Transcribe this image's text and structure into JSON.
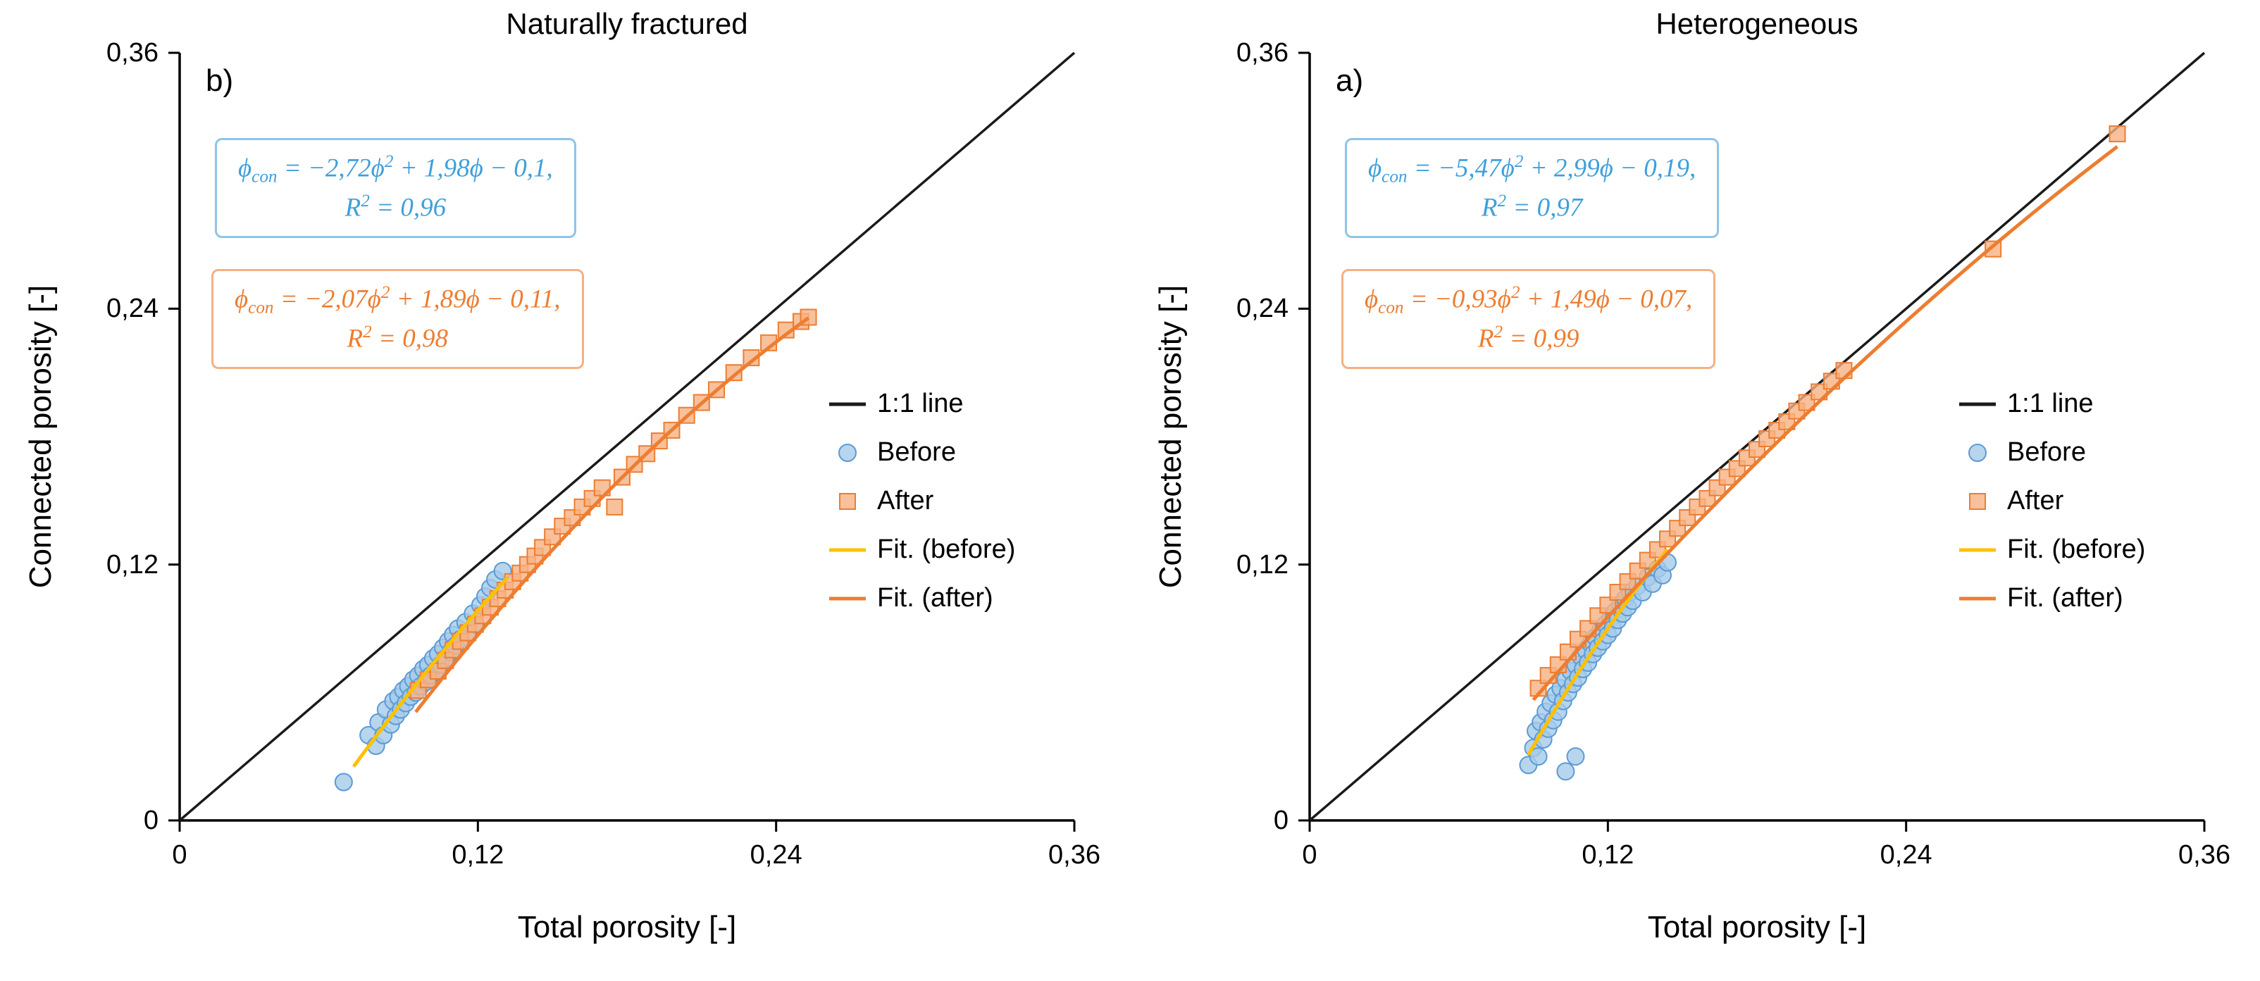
{
  "page": {
    "background": "#ffffff"
  },
  "colors": {
    "axis": "#000000",
    "one_to_one": "#1a1a1a",
    "before_fill": "#a5cbe9",
    "before_stroke": "#5b9bd5",
    "after_fill": "#f6b183",
    "after_stroke": "#ed7d31",
    "fit_before": "#ffc000",
    "fit_after": "#ed7d31",
    "equation_blue_text": "#3fa0db",
    "equation_blue_border": "#8fc4e8",
    "equation_orange_text": "#ed7d31",
    "equation_orange_border": "#f4b183"
  },
  "legend": {
    "items": [
      {
        "key": "one-to-one",
        "label": "1:1 line",
        "swatch": "line",
        "color": "#1a1a1a"
      },
      {
        "key": "before",
        "label": "Before",
        "swatch": "circle",
        "fill": "#a5cbe9",
        "stroke": "#5b9bd5"
      },
      {
        "key": "after",
        "label": "After",
        "swatch": "square",
        "fill": "#f6b183",
        "stroke": "#ed7d31"
      },
      {
        "key": "fit-before",
        "label": "Fit. (before)",
        "swatch": "line",
        "color": "#ffc000"
      },
      {
        "key": "fit-after",
        "label": "Fit. (after)",
        "swatch": "line",
        "color": "#ed7d31"
      }
    ]
  },
  "chart_data": [
    {
      "type": "scatter",
      "panel_label": "b)",
      "title": "Naturally fractured",
      "xlabel": "Total porosity [-]",
      "ylabel": "Connected porosity [-]",
      "xlim": [
        0,
        0.36
      ],
      "ylim": [
        0,
        0.36
      ],
      "grid": false,
      "xticks": {
        "values": [
          0,
          0.12,
          0.24,
          0.36
        ],
        "labels": [
          "0",
          "0,12",
          "0,24",
          "0,36"
        ]
      },
      "yticks": {
        "values": [
          0,
          0.12,
          0.24,
          0.36
        ],
        "labels": [
          "0",
          "0,12",
          "0,24",
          "0,36"
        ]
      },
      "one_to_one_line": {
        "label": "1:1 line",
        "from": [
          0,
          0
        ],
        "to": [
          0.36,
          0.36
        ],
        "color": "#1a1a1a"
      },
      "series": [
        {
          "key": "before",
          "name": "Before",
          "marker": "circle",
          "fill": "#a5cbe9",
          "stroke": "#5b9bd5",
          "points": [
            [
              0.066,
              0.018
            ],
            [
              0.076,
              0.04
            ],
            [
              0.079,
              0.035
            ],
            [
              0.08,
              0.046
            ],
            [
              0.082,
              0.04
            ],
            [
              0.083,
              0.052
            ],
            [
              0.085,
              0.045
            ],
            [
              0.086,
              0.056
            ],
            [
              0.087,
              0.049
            ],
            [
              0.088,
              0.058
            ],
            [
              0.089,
              0.052
            ],
            [
              0.09,
              0.061
            ],
            [
              0.091,
              0.055
            ],
            [
              0.092,
              0.063
            ],
            [
              0.093,
              0.058
            ],
            [
              0.094,
              0.066
            ],
            [
              0.095,
              0.06
            ],
            [
              0.096,
              0.068
            ],
            [
              0.097,
              0.063
            ],
            [
              0.098,
              0.071
            ],
            [
              0.099,
              0.065
            ],
            [
              0.1,
              0.073
            ],
            [
              0.101,
              0.068
            ],
            [
              0.102,
              0.076
            ],
            [
              0.103,
              0.07
            ],
            [
              0.104,
              0.078
            ],
            [
              0.105,
              0.073
            ],
            [
              0.106,
              0.081
            ],
            [
              0.107,
              0.076
            ],
            [
              0.108,
              0.084
            ],
            [
              0.109,
              0.079
            ],
            [
              0.11,
              0.087
            ],
            [
              0.111,
              0.082
            ],
            [
              0.112,
              0.09
            ],
            [
              0.113,
              0.085
            ],
            [
              0.115,
              0.093
            ],
            [
              0.116,
              0.088
            ],
            [
              0.118,
              0.097
            ],
            [
              0.119,
              0.092
            ],
            [
              0.121,
              0.101
            ],
            [
              0.123,
              0.105
            ],
            [
              0.125,
              0.109
            ],
            [
              0.127,
              0.113
            ],
            [
              0.13,
              0.117
            ]
          ]
        },
        {
          "key": "after",
          "name": "After",
          "marker": "square",
          "fill": "#f6b183",
          "stroke": "#ed7d31",
          "points": [
            [
              0.096,
              0.061
            ],
            [
              0.1,
              0.066
            ],
            [
              0.104,
              0.07
            ],
            [
              0.107,
              0.075
            ],
            [
              0.11,
              0.08
            ],
            [
              0.113,
              0.084
            ],
            [
              0.116,
              0.088
            ],
            [
              0.119,
              0.092
            ],
            [
              0.122,
              0.096
            ],
            [
              0.125,
              0.1
            ],
            [
              0.128,
              0.104
            ],
            [
              0.131,
              0.108
            ],
            [
              0.134,
              0.112
            ],
            [
              0.137,
              0.116
            ],
            [
              0.14,
              0.12
            ],
            [
              0.143,
              0.124
            ],
            [
              0.146,
              0.128
            ],
            [
              0.15,
              0.133
            ],
            [
              0.154,
              0.138
            ],
            [
              0.158,
              0.142
            ],
            [
              0.162,
              0.147
            ],
            [
              0.166,
              0.151
            ],
            [
              0.17,
              0.156
            ],
            [
              0.175,
              0.147
            ],
            [
              0.178,
              0.161
            ],
            [
              0.183,
              0.167
            ],
            [
              0.188,
              0.172
            ],
            [
              0.193,
              0.178
            ],
            [
              0.198,
              0.183
            ],
            [
              0.204,
              0.19
            ],
            [
              0.21,
              0.196
            ],
            [
              0.216,
              0.202
            ],
            [
              0.223,
              0.21
            ],
            [
              0.23,
              0.217
            ],
            [
              0.237,
              0.224
            ],
            [
              0.244,
              0.23
            ],
            [
              0.25,
              0.234
            ],
            [
              0.253,
              0.236
            ]
          ]
        }
      ],
      "fits": [
        {
          "key": "before",
          "name": "Fit. (before)",
          "color": "#ffc000",
          "coeffs": [
            -2.72,
            1.98,
            -0.1
          ],
          "x_range": [
            0.07,
            0.132
          ],
          "equation": {
            "line1": "ϕ_{con} = −2,72ϕ^{2} + 1,98ϕ − 0,1,",
            "line2": "R^{2} = 0,96",
            "text_color": "#3fa0db",
            "border_color": "#8fc4e8"
          }
        },
        {
          "key": "after",
          "name": "Fit. (after)",
          "color": "#ed7d31",
          "coeffs": [
            -2.07,
            1.89,
            -0.11
          ],
          "x_range": [
            0.095,
            0.253
          ],
          "equation": {
            "line1": "ϕ_{con} = −2,07ϕ^{2} + 1,89ϕ − 0,11,",
            "line2": "R^{2} = 0,98",
            "text_color": "#ed7d31",
            "border_color": "#f4b183"
          }
        }
      ]
    },
    {
      "type": "scatter",
      "panel_label": "a)",
      "title": "Heterogeneous",
      "xlabel": "Total porosity [-]",
      "ylabel": "Connected porosity [-]",
      "xlim": [
        0,
        0.36
      ],
      "ylim": [
        0,
        0.36
      ],
      "grid": false,
      "xticks": {
        "values": [
          0,
          0.12,
          0.24,
          0.36
        ],
        "labels": [
          "0",
          "0,12",
          "0,24",
          "0,36"
        ]
      },
      "yticks": {
        "values": [
          0,
          0.12,
          0.24,
          0.36
        ],
        "labels": [
          "0",
          "0,12",
          "0,24",
          "0,36"
        ]
      },
      "one_to_one_line": {
        "label": "1:1 line",
        "from": [
          0,
          0
        ],
        "to": [
          0.36,
          0.36
        ],
        "color": "#1a1a1a"
      },
      "series": [
        {
          "key": "before",
          "name": "Before",
          "marker": "circle",
          "fill": "#a5cbe9",
          "stroke": "#5b9bd5",
          "points": [
            [
              0.088,
              0.026
            ],
            [
              0.09,
              0.034
            ],
            [
              0.091,
              0.042
            ],
            [
              0.092,
              0.03
            ],
            [
              0.093,
              0.046
            ],
            [
              0.094,
              0.038
            ],
            [
              0.095,
              0.051
            ],
            [
              0.096,
              0.043
            ],
            [
              0.097,
              0.055
            ],
            [
              0.098,
              0.047
            ],
            [
              0.099,
              0.059
            ],
            [
              0.1,
              0.051
            ],
            [
              0.101,
              0.062
            ],
            [
              0.102,
              0.056
            ],
            [
              0.103,
              0.023
            ],
            [
              0.103,
              0.066
            ],
            [
              0.104,
              0.06
            ],
            [
              0.105,
              0.07
            ],
            [
              0.106,
              0.064
            ],
            [
              0.107,
              0.03
            ],
            [
              0.107,
              0.073
            ],
            [
              0.108,
              0.067
            ],
            [
              0.109,
              0.077
            ],
            [
              0.11,
              0.071
            ],
            [
              0.111,
              0.08
            ],
            [
              0.112,
              0.074
            ],
            [
              0.113,
              0.083
            ],
            [
              0.114,
              0.078
            ],
            [
              0.115,
              0.086
            ],
            [
              0.116,
              0.081
            ],
            [
              0.117,
              0.089
            ],
            [
              0.118,
              0.084
            ],
            [
              0.119,
              0.092
            ],
            [
              0.12,
              0.087
            ],
            [
              0.121,
              0.095
            ],
            [
              0.122,
              0.09
            ],
            [
              0.123,
              0.098
            ],
            [
              0.124,
              0.094
            ],
            [
              0.125,
              0.101
            ],
            [
              0.126,
              0.097
            ],
            [
              0.127,
              0.104
            ],
            [
              0.128,
              0.1
            ],
            [
              0.129,
              0.107
            ],
            [
              0.13,
              0.103
            ],
            [
              0.132,
              0.11
            ],
            [
              0.134,
              0.107
            ],
            [
              0.136,
              0.114
            ],
            [
              0.138,
              0.111
            ],
            [
              0.14,
              0.118
            ],
            [
              0.142,
              0.115
            ],
            [
              0.144,
              0.121
            ]
          ]
        },
        {
          "key": "after",
          "name": "After",
          "marker": "square",
          "fill": "#f6b183",
          "stroke": "#ed7d31",
          "points": [
            [
              0.092,
              0.062
            ],
            [
              0.096,
              0.068
            ],
            [
              0.1,
              0.073
            ],
            [
              0.104,
              0.079
            ],
            [
              0.108,
              0.085
            ],
            [
              0.112,
              0.09
            ],
            [
              0.116,
              0.096
            ],
            [
              0.12,
              0.101
            ],
            [
              0.124,
              0.107
            ],
            [
              0.128,
              0.112
            ],
            [
              0.132,
              0.117
            ],
            [
              0.136,
              0.122
            ],
            [
              0.14,
              0.127
            ],
            [
              0.144,
              0.132
            ],
            [
              0.148,
              0.137
            ],
            [
              0.152,
              0.142
            ],
            [
              0.156,
              0.147
            ],
            [
              0.16,
              0.151
            ],
            [
              0.164,
              0.156
            ],
            [
              0.168,
              0.161
            ],
            [
              0.172,
              0.165
            ],
            [
              0.176,
              0.17
            ],
            [
              0.18,
              0.174
            ],
            [
              0.184,
              0.179
            ],
            [
              0.188,
              0.183
            ],
            [
              0.192,
              0.187
            ],
            [
              0.196,
              0.192
            ],
            [
              0.2,
              0.196
            ],
            [
              0.205,
              0.201
            ],
            [
              0.21,
              0.206
            ],
            [
              0.215,
              0.211
            ],
            [
              0.275,
              0.268
            ],
            [
              0.325,
              0.322
            ]
          ]
        }
      ],
      "fits": [
        {
          "key": "before",
          "name": "Fit. (before)",
          "color": "#ffc000",
          "coeffs": [
            -5.47,
            2.99,
            -0.19
          ],
          "x_range": [
            0.088,
            0.144
          ],
          "equation": {
            "line1": "ϕ_{con} = −5,47ϕ^{2} + 2,99ϕ − 0,19,",
            "line2": "R^{2} = 0,97",
            "text_color": "#3fa0db",
            "border_color": "#8fc4e8"
          }
        },
        {
          "key": "after",
          "name": "Fit. (after)",
          "color": "#ed7d31",
          "coeffs": [
            -0.93,
            1.49,
            -0.07
          ],
          "x_range": [
            0.09,
            0.325
          ],
          "equation": {
            "line1": "ϕ_{con} = −0,93ϕ^{2} + 1,49ϕ − 0,07,",
            "line2": "R^{2} = 0,99",
            "text_color": "#ed7d31",
            "border_color": "#f4b183"
          }
        }
      ]
    }
  ]
}
